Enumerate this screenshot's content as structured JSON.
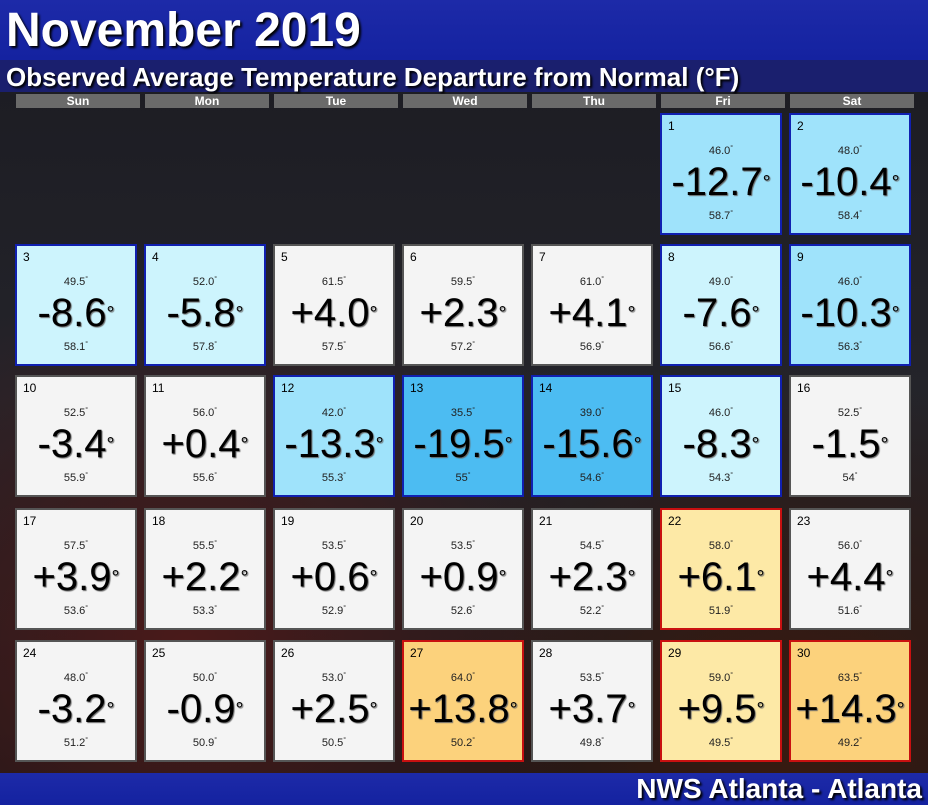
{
  "title": "November 2019",
  "subtitle": "Observed Average Temperature Departure from Normal (°F)",
  "footer": "NWS Atlanta - Atlanta",
  "weekdays": [
    "Sun",
    "Mon",
    "Tue",
    "Wed",
    "Thu",
    "Fri",
    "Sat"
  ],
  "colors": {
    "neutral": "#f4f4f4",
    "cool1": "#cdf4fd",
    "cool2": "#9fe3fb",
    "cool3": "#4cbcf2",
    "warm1": "#fde9a6",
    "warm2": "#fcd27c",
    "cool_border": "#1020b0",
    "warm_border": "#c81010",
    "neutral_border": "#555555"
  },
  "days": [
    {
      "day": "1",
      "hi": "46.0",
      "dep": "-12.7",
      "lo": "58.7",
      "shade": "cool2"
    },
    {
      "day": "2",
      "hi": "48.0",
      "dep": "-10.4",
      "lo": "58.4",
      "shade": "cool2"
    },
    {
      "day": "3",
      "hi": "49.5",
      "dep": "-8.6",
      "lo": "58.1",
      "shade": "cool1"
    },
    {
      "day": "4",
      "hi": "52.0",
      "dep": "-5.8",
      "lo": "57.8",
      "shade": "cool1"
    },
    {
      "day": "5",
      "hi": "61.5",
      "dep": "+4.0",
      "lo": "57.5",
      "shade": "neutral"
    },
    {
      "day": "6",
      "hi": "59.5",
      "dep": "+2.3",
      "lo": "57.2",
      "shade": "neutral"
    },
    {
      "day": "7",
      "hi": "61.0",
      "dep": "+4.1",
      "lo": "56.9",
      "shade": "neutral"
    },
    {
      "day": "8",
      "hi": "49.0",
      "dep": "-7.6",
      "lo": "56.6",
      "shade": "cool1"
    },
    {
      "day": "9",
      "hi": "46.0",
      "dep": "-10.3",
      "lo": "56.3",
      "shade": "cool2"
    },
    {
      "day": "10",
      "hi": "52.5",
      "dep": "-3.4",
      "lo": "55.9",
      "shade": "neutral"
    },
    {
      "day": "11",
      "hi": "56.0",
      "dep": "+0.4",
      "lo": "55.6",
      "shade": "neutral"
    },
    {
      "day": "12",
      "hi": "42.0",
      "dep": "-13.3",
      "lo": "55.3",
      "shade": "cool2"
    },
    {
      "day": "13",
      "hi": "35.5",
      "dep": "-19.5",
      "lo": "55",
      "shade": "cool3"
    },
    {
      "day": "14",
      "hi": "39.0",
      "dep": "-15.6",
      "lo": "54.6",
      "shade": "cool3"
    },
    {
      "day": "15",
      "hi": "46.0",
      "dep": "-8.3",
      "lo": "54.3",
      "shade": "cool1"
    },
    {
      "day": "16",
      "hi": "52.5",
      "dep": "-1.5",
      "lo": "54",
      "shade": "neutral"
    },
    {
      "day": "17",
      "hi": "57.5",
      "dep": "+3.9",
      "lo": "53.6",
      "shade": "neutral"
    },
    {
      "day": "18",
      "hi": "55.5",
      "dep": "+2.2",
      "lo": "53.3",
      "shade": "neutral"
    },
    {
      "day": "19",
      "hi": "53.5",
      "dep": "+0.6",
      "lo": "52.9",
      "shade": "neutral"
    },
    {
      "day": "20",
      "hi": "53.5",
      "dep": "+0.9",
      "lo": "52.6",
      "shade": "neutral"
    },
    {
      "day": "21",
      "hi": "54.5",
      "dep": "+2.3",
      "lo": "52.2",
      "shade": "neutral"
    },
    {
      "day": "22",
      "hi": "58.0",
      "dep": "+6.1",
      "lo": "51.9",
      "shade": "warm1"
    },
    {
      "day": "23",
      "hi": "56.0",
      "dep": "+4.4",
      "lo": "51.6",
      "shade": "neutral"
    },
    {
      "day": "24",
      "hi": "48.0",
      "dep": "-3.2",
      "lo": "51.2",
      "shade": "neutral"
    },
    {
      "day": "25",
      "hi": "50.0",
      "dep": "-0.9",
      "lo": "50.9",
      "shade": "neutral"
    },
    {
      "day": "26",
      "hi": "53.0",
      "dep": "+2.5",
      "lo": "50.5",
      "shade": "neutral"
    },
    {
      "day": "27",
      "hi": "64.0",
      "dep": "+13.8",
      "lo": "50.2",
      "shade": "warm2"
    },
    {
      "day": "28",
      "hi": "53.5",
      "dep": "+3.7",
      "lo": "49.8",
      "shade": "neutral"
    },
    {
      "day": "29",
      "hi": "59.0",
      "dep": "+9.5",
      "lo": "49.5",
      "shade": "warm1"
    },
    {
      "day": "30",
      "hi": "63.5",
      "dep": "+14.3",
      "lo": "49.2",
      "shade": "warm2"
    }
  ]
}
